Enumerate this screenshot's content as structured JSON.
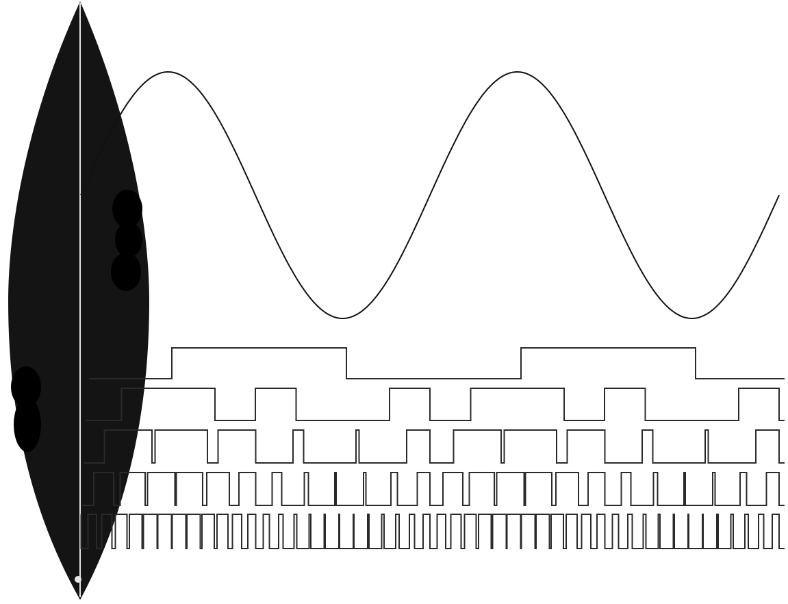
{
  "colors": {
    "background": "#ffffff",
    "ink": "#111111",
    "surfboard_body": "#141414",
    "surfboard_spots": "#000000",
    "stringer": "#e6e6e6",
    "pwm_ink": "#2a2a2a"
  },
  "sine_wave": {
    "cycles": 2,
    "start_phase": "zero, rising"
  },
  "pwm_rows": [
    {
      "name": "row-1",
      "carrier_multiple": 1
    },
    {
      "name": "row-2",
      "carrier_multiple": 3
    },
    {
      "name": "row-3",
      "carrier_multiple": 6
    },
    {
      "name": "row-4",
      "carrier_multiple": 12
    },
    {
      "name": "row-5",
      "carrier_multiple": 24
    }
  ],
  "icons": {
    "surfboard": "surfboard-icon",
    "fin": "fin-dot-icon"
  }
}
